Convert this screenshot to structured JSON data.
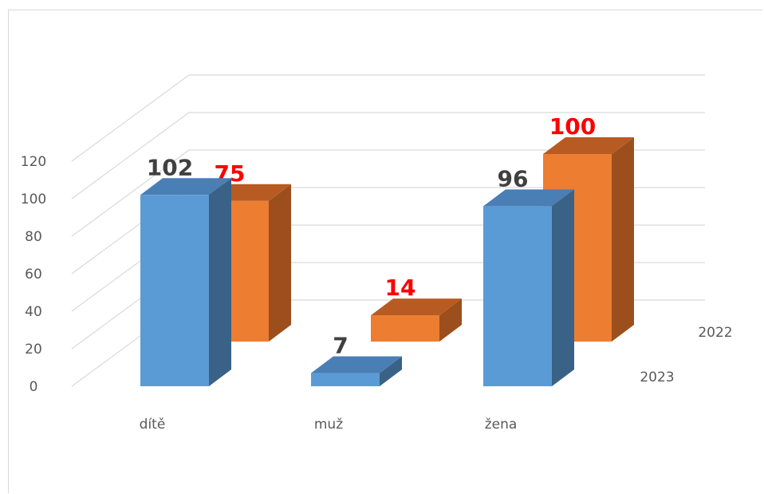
{
  "colors": {
    "series_2023_front": "#5b9bd5",
    "series_2023_side": "#3a6186",
    "series_2023_top": "#4a7fb5",
    "series_2022_front": "#ed7d31",
    "series_2022_side": "#9c4f1d",
    "series_2022_top": "#b85b22",
    "label_2023": "#404040",
    "label_2022": "#ff0000",
    "grid": "#d9d9d9"
  },
  "chart_data": {
    "type": "bar",
    "categories": [
      "dítě",
      "muž",
      "žena"
    ],
    "series": [
      {
        "name": "2023",
        "values": [
          102,
          7,
          96
        ]
      },
      {
        "name": "2022",
        "values": [
          75,
          14,
          100
        ]
      }
    ],
    "ylim": [
      0,
      120
    ],
    "yticks": [
      0,
      20,
      40,
      60,
      80,
      100,
      120
    ],
    "grid": true,
    "legend": "series labels on depth axis (right)"
  }
}
